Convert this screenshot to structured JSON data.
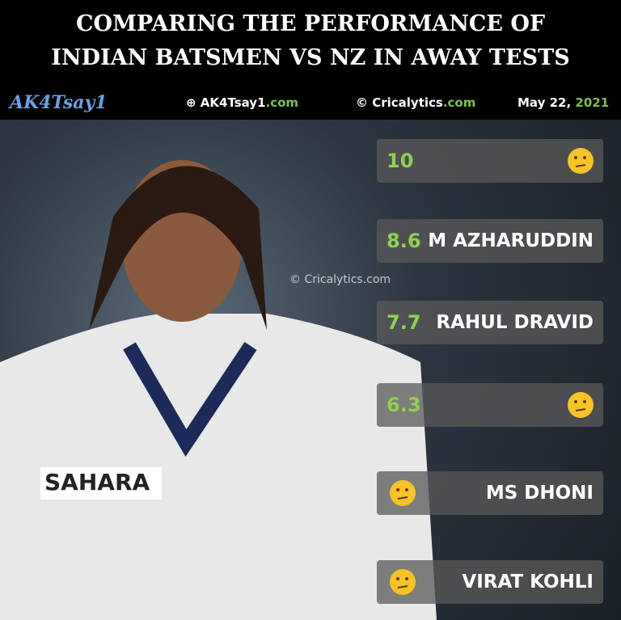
{
  "header": {
    "title_lines": [
      "COMPARING THE PERFORMANCE OF",
      "INDIAN BATSMEN VS NZ IN AWAY TESTS"
    ],
    "logo": "AK4Tsay1",
    "site": {
      "name": "AK4Tsay1",
      "suffix": ".com"
    },
    "credit": {
      "name": "© Cricalytics",
      "suffix": ".com"
    },
    "date": {
      "day": "May 22,",
      "year": "2021"
    }
  },
  "watermark": "© Cricalytics.com",
  "rows": [
    {
      "value": 10
    },
    {
      "value": 8.6,
      "name": "M AZHARUDDIN"
    },
    {
      "value": 7.7,
      "name": "RAHUL DRAVID"
    },
    {
      "value": 6.3
    },
    {
      "name": "MS DHONI"
    },
    {
      "name": "VIRAT KOHLI"
    }
  ]
}
